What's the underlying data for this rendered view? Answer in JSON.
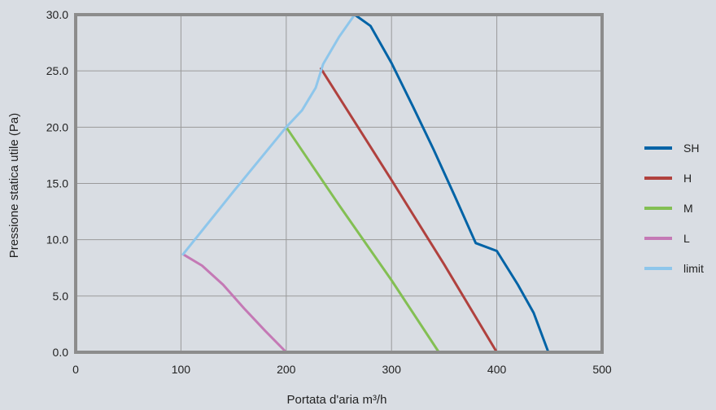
{
  "chart_data": {
    "type": "line",
    "title": "",
    "xlabel": "Portata d'aria m³/h",
    "ylabel": "Pressione statica utile (Pa)",
    "xlim": [
      0,
      500
    ],
    "ylim": [
      0,
      30
    ],
    "x_ticks": [
      0,
      100,
      200,
      300,
      400,
      500
    ],
    "y_ticks": [
      0,
      5,
      10,
      15,
      20,
      25,
      30
    ],
    "x_tick_labels": [
      "0",
      "100",
      "200",
      "300",
      "400",
      "500"
    ],
    "y_tick_labels": [
      "0.0",
      "5.0",
      "10.0",
      "15.0",
      "20.0",
      "25.0",
      "30.0"
    ],
    "grid": true,
    "legend_position": "right",
    "series": [
      {
        "name": "SH",
        "color": "#0063a6",
        "points": [
          [
            265,
            30.0
          ],
          [
            280,
            29.0
          ],
          [
            300,
            25.7
          ],
          [
            320,
            21.9
          ],
          [
            340,
            18.0
          ],
          [
            360,
            13.9
          ],
          [
            380,
            9.7
          ],
          [
            400,
            9.0
          ],
          [
            420,
            6.0
          ],
          [
            435,
            3.5
          ],
          [
            449,
            0.0
          ]
        ]
      },
      {
        "name": "H",
        "color": "#b0413e",
        "points": [
          [
            233,
            25.2
          ],
          [
            300,
            15.3
          ],
          [
            350,
            7.8
          ],
          [
            400,
            0.0
          ]
        ]
      },
      {
        "name": "M",
        "color": "#83bf53",
        "points": [
          [
            200,
            20.0
          ],
          [
            250,
            13.1
          ],
          [
            300,
            6.4
          ],
          [
            345,
            0.0
          ]
        ]
      },
      {
        "name": "L",
        "color": "#c479b5",
        "points": [
          [
            102,
            8.7
          ],
          [
            120,
            7.7
          ],
          [
            140,
            6.0
          ],
          [
            160,
            3.9
          ],
          [
            180,
            1.9
          ],
          [
            200,
            0.0
          ]
        ]
      },
      {
        "name": "limit",
        "color": "#8ec6eb",
        "points": [
          [
            102,
            8.7
          ],
          [
            150,
            14.3
          ],
          [
            200,
            20.0
          ],
          [
            215,
            21.5
          ],
          [
            228,
            23.5
          ],
          [
            235,
            25.6
          ],
          [
            250,
            28.0
          ],
          [
            265,
            30.0
          ]
        ]
      }
    ]
  }
}
